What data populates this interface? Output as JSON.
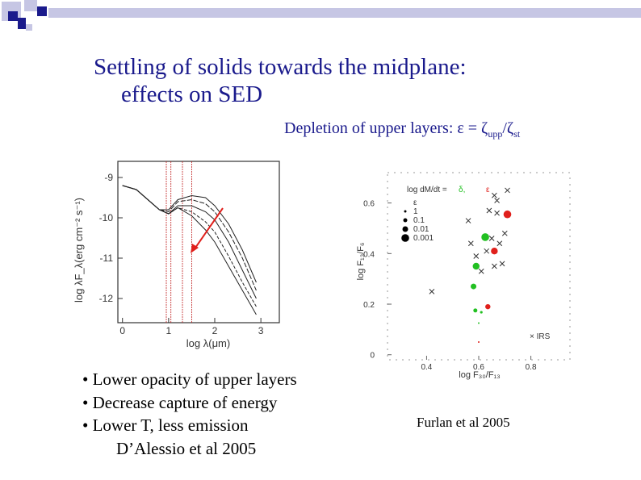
{
  "slide": {
    "title_line1": "Settling of solids towards the midplane:",
    "title_line2": "effects on SED",
    "subtitle_pre": "Depletion of upper layers:  ε = ζ",
    "subtitle_sub1": "upp",
    "subtitle_mid": "/ζ",
    "subtitle_sub2": "st",
    "bullets": [
      "• Lower opacity of upper layers",
      "• Decrease capture of energy",
      "• Lower T, less emission"
    ],
    "citation_left": "D’Alessio et al 2005",
    "citation_right": "Furlan et al 2005"
  },
  "colors": {
    "title": "#1a1a8c",
    "deco_blue": "#1a1a8c",
    "deco_light": "#c6c6e4",
    "arrow": "#e0201c",
    "green": "#22c022",
    "red": "#e0201c"
  },
  "chart_data": [
    {
      "type": "line",
      "xlabel": "log λ(μm)",
      "ylabel": "log λF_λ(erg cm⁻² s⁻¹)",
      "xlim": [
        -0.1,
        3.4
      ],
      "ylim": [
        -12.6,
        -8.6
      ],
      "xticks": [
        "0",
        "1",
        "2",
        "3"
      ],
      "yticks": [
        "-9",
        "-10",
        "-11",
        "-12"
      ],
      "vlines": [
        0.95,
        1.05,
        1.3,
        1.5
      ],
      "series": [
        {
          "x": [
            0,
            0.3,
            0.6,
            0.8,
            1.0,
            1.2,
            1.5,
            1.8,
            2.0,
            2.3,
            2.6,
            2.9
          ],
          "y": [
            -9.2,
            -9.3,
            -9.6,
            -9.8,
            -9.9,
            -9.75,
            -9.95,
            -10.3,
            -10.6,
            -11.2,
            -11.8,
            -12.4
          ]
        },
        {
          "x": [
            0,
            0.3,
            0.6,
            0.8,
            1.0,
            1.2,
            1.5,
            1.8,
            2.0,
            2.3,
            2.6,
            2.9
          ],
          "y": [
            -9.2,
            -9.3,
            -9.6,
            -9.8,
            -9.9,
            -9.75,
            -9.85,
            -10.1,
            -10.35,
            -10.95,
            -11.6,
            -12.2
          ]
        },
        {
          "x": [
            0,
            0.3,
            0.6,
            0.8,
            1.0,
            1.2,
            1.5,
            1.8,
            2.0,
            2.3,
            2.6,
            2.9
          ],
          "y": [
            -9.2,
            -9.3,
            -9.6,
            -9.8,
            -9.9,
            -9.7,
            -9.7,
            -9.85,
            -10.05,
            -10.6,
            -11.3,
            -12.0
          ]
        },
        {
          "x": [
            0,
            0.3,
            0.6,
            0.8,
            1.0,
            1.2,
            1.5,
            1.8,
            2.0,
            2.3,
            2.6,
            2.9
          ],
          "y": [
            -9.2,
            -9.3,
            -9.6,
            -9.8,
            -9.85,
            -9.6,
            -9.55,
            -9.65,
            -9.85,
            -10.35,
            -11.0,
            -11.8
          ]
        },
        {
          "x": [
            0,
            0.3,
            0.6,
            0.8,
            1.0,
            1.2,
            1.5,
            1.8,
            2.0,
            2.3,
            2.6,
            2.9
          ],
          "y": [
            -9.2,
            -9.3,
            -9.6,
            -9.8,
            -9.8,
            -9.55,
            -9.45,
            -9.5,
            -9.7,
            -10.15,
            -10.8,
            -11.6
          ]
        }
      ]
    },
    {
      "type": "scatter",
      "xlabel": "log F₃₀/F₁₃",
      "ylabel": "log F₁₃/F₆",
      "xlim": [
        0.25,
        0.95
      ],
      "ylim": [
        -0.02,
        0.72
      ],
      "xticks": [
        "0.4",
        "0.6",
        "0.8"
      ],
      "yticks": [
        "0",
        "0.2",
        "0.4",
        "0.6"
      ],
      "legend_title": "log dM/dt =",
      "legend_title_delta": "δ,",
      "legend_title_eps": "ε",
      "legend_sizes": [
        "ε",
        "1",
        "0.1",
        "0.01",
        "0.001"
      ],
      "label_irs": "× IRS",
      "crosses": [
        [
          0.71,
          0.65
        ],
        [
          0.66,
          0.63
        ],
        [
          0.67,
          0.61
        ],
        [
          0.64,
          0.57
        ],
        [
          0.67,
          0.56
        ],
        [
          0.56,
          0.53
        ],
        [
          0.7,
          0.48
        ],
        [
          0.65,
          0.46
        ],
        [
          0.57,
          0.44
        ],
        [
          0.68,
          0.44
        ],
        [
          0.63,
          0.41
        ],
        [
          0.59,
          0.39
        ],
        [
          0.69,
          0.36
        ],
        [
          0.61,
          0.33
        ],
        [
          0.66,
          0.35
        ],
        [
          0.42,
          0.25
        ]
      ],
      "green": [
        [
          0.625,
          0.465,
          4.8
        ],
        [
          0.59,
          0.35,
          4.2
        ],
        [
          0.58,
          0.27,
          3.5
        ],
        [
          0.587,
          0.175,
          2.5
        ],
        [
          0.61,
          0.168,
          1.6
        ],
        [
          0.6,
          0.125,
          1.0
        ]
      ],
      "red": [
        [
          0.71,
          0.555,
          4.8
        ],
        [
          0.66,
          0.41,
          4.2
        ],
        [
          0.635,
          0.19,
          3.2
        ],
        [
          0.6,
          0.05,
          1.0
        ]
      ]
    }
  ]
}
